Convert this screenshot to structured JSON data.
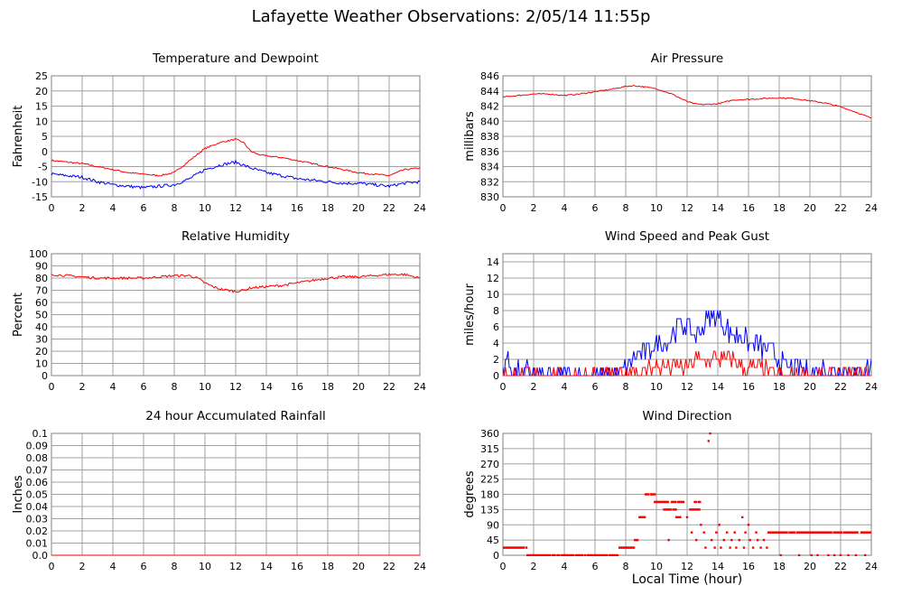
{
  "title": "Lafayette Weather Observations: 2/05/14 11:55p",
  "xlabel_bottom": "Local Time (hour)",
  "colors": {
    "red": "#ff0000",
    "blue": "#0000ff",
    "grid": "#a0a0a0"
  },
  "chart_data": [
    {
      "id": "temp",
      "type": "line",
      "title": "Temperature and Dewpoint",
      "ylabel": "Fahrenheit",
      "xlim": [
        0,
        24
      ],
      "ylim": [
        -15,
        25
      ],
      "xticks": [
        0,
        2,
        4,
        6,
        8,
        10,
        12,
        14,
        16,
        18,
        20,
        22,
        24
      ],
      "yticks": [
        -15,
        -10,
        -5,
        0,
        5,
        10,
        15,
        20,
        25
      ],
      "ytick_labels": [
        "-15",
        "-10",
        "-5",
        "0",
        "5",
        "10",
        "15",
        "20",
        "25"
      ],
      "grid": true,
      "series": [
        {
          "color": "#ff0000",
          "x": [
            0,
            1,
            2,
            3,
            4,
            5,
            6,
            7,
            8,
            8.5,
            9,
            9.5,
            10,
            10.5,
            11,
            11.5,
            12,
            12.5,
            13,
            13.5,
            14,
            15,
            16,
            17,
            18,
            19,
            20,
            21,
            22,
            22.5,
            23,
            24
          ],
          "y": [
            -3,
            -3.5,
            -4,
            -5,
            -6,
            -7,
            -7.5,
            -8,
            -7,
            -5,
            -3,
            -1,
            1,
            2,
            3,
            3.5,
            4,
            3,
            0,
            -1,
            -1.5,
            -2,
            -3,
            -4,
            -5,
            -6,
            -7,
            -7.5,
            -8,
            -7,
            -6,
            -5.5
          ],
          "noise": 0.25
        },
        {
          "color": "#0000ff",
          "x": [
            0,
            1,
            2,
            3,
            4,
            5,
            6,
            7,
            8,
            9,
            10,
            11,
            12,
            13,
            14,
            15,
            16,
            17,
            18,
            19,
            20,
            21,
            22,
            23,
            24
          ],
          "y": [
            -7.5,
            -8,
            -8.5,
            -10,
            -11,
            -11.5,
            -12,
            -11.5,
            -11,
            -9,
            -6,
            -4.5,
            -3.5,
            -5.5,
            -7,
            -8,
            -9,
            -9.5,
            -10,
            -10.5,
            -10.5,
            -11,
            -11.5,
            -10.5,
            -10
          ],
          "noise": 0.5
        }
      ]
    },
    {
      "id": "pressure",
      "type": "line",
      "title": "Air Pressure",
      "ylabel": "millibars",
      "xlim": [
        0,
        24
      ],
      "ylim": [
        830,
        846
      ],
      "xticks": [
        0,
        2,
        4,
        6,
        8,
        10,
        12,
        14,
        16,
        18,
        20,
        22,
        24
      ],
      "yticks": [
        830,
        832,
        834,
        836,
        838,
        840,
        842,
        844,
        846
      ],
      "ytick_labels": [
        "830",
        "832",
        "834",
        "836",
        "838",
        "840",
        "842",
        "844",
        "846"
      ],
      "grid": true,
      "series": [
        {
          "color": "#ff0000",
          "x": [
            0,
            1,
            2,
            3,
            4,
            5,
            6,
            7,
            8,
            8.5,
            9,
            10,
            11,
            12,
            12.5,
            13,
            14,
            15,
            16,
            17,
            18,
            19,
            20,
            21,
            22,
            23,
            24
          ],
          "y": [
            843.2,
            843.4,
            843.6,
            843.6,
            843.4,
            843.6,
            843.9,
            844.2,
            844.6,
            844.7,
            844.6,
            844.3,
            843.6,
            842.6,
            842.3,
            842.2,
            842.3,
            842.8,
            842.9,
            843,
            843.1,
            843,
            842.7,
            842.4,
            841.9,
            841.2,
            840.4
          ],
          "noise": 0.08
        }
      ]
    },
    {
      "id": "humidity",
      "type": "line",
      "title": "Relative Humidity",
      "ylabel": "Percent",
      "xlim": [
        0,
        24
      ],
      "ylim": [
        0,
        100
      ],
      "xticks": [
        0,
        2,
        4,
        6,
        8,
        10,
        12,
        14,
        16,
        18,
        20,
        22,
        24
      ],
      "yticks": [
        0,
        10,
        20,
        30,
        40,
        50,
        60,
        70,
        80,
        90,
        100
      ],
      "ytick_labels": [
        "0",
        "10",
        "20",
        "30",
        "40",
        "50",
        "60",
        "70",
        "80",
        "90",
        "100"
      ],
      "grid": true,
      "series": [
        {
          "color": "#ff0000",
          "x": [
            0,
            1,
            2,
            3,
            4,
            5,
            6,
            7,
            8,
            9,
            9.5,
            10,
            10.5,
            11,
            11.5,
            12,
            12.5,
            13,
            14,
            15,
            16,
            17,
            18,
            19,
            20,
            21,
            22,
            23,
            24
          ],
          "y": [
            83,
            82,
            81,
            80,
            80,
            80,
            80,
            81,
            82,
            82,
            80,
            76,
            73,
            71,
            70,
            69,
            70,
            72,
            73,
            74,
            76,
            78,
            80,
            81,
            81,
            82,
            83,
            83,
            80
          ],
          "noise": 1.0
        }
      ]
    },
    {
      "id": "wind",
      "type": "line",
      "title": "Wind Speed and Peak Gust",
      "ylabel": "miles/hour",
      "xlim": [
        0,
        24
      ],
      "ylim": [
        0,
        15
      ],
      "xticks": [
        0,
        2,
        4,
        6,
        8,
        10,
        12,
        14,
        16,
        18,
        20,
        22,
        24
      ],
      "yticks": [
        0,
        2,
        4,
        6,
        8,
        10,
        12,
        14
      ],
      "ytick_labels": [
        "0",
        "2",
        "4",
        "6",
        "8",
        "10",
        "12",
        "14"
      ],
      "grid": true,
      "series": [
        {
          "color": "#0000ff",
          "x": [
            0,
            0.2,
            0.5,
            0.8,
            1.0,
            1.3,
            1.6,
            1.8,
            2,
            4,
            6,
            7,
            7.5,
            8,
            8.5,
            9,
            9.5,
            10,
            10.5,
            11,
            11.5,
            12,
            12.5,
            13,
            13.5,
            14,
            14.5,
            15,
            15.5,
            16,
            16.5,
            17,
            17.5,
            18,
            18.5,
            19,
            19.5,
            20,
            20.5,
            21,
            21.5,
            22,
            22.5,
            23,
            23.5,
            24
          ],
          "y": [
            1,
            2,
            1,
            0,
            1,
            0,
            1,
            0,
            0,
            0,
            0,
            0,
            0,
            1,
            2,
            3,
            3,
            4,
            4,
            5,
            6,
            6,
            5,
            6,
            7,
            7,
            6,
            5,
            5,
            4,
            4,
            3,
            3,
            2,
            1,
            1,
            1,
            1,
            0,
            1,
            0,
            1,
            1,
            0,
            1,
            1
          ],
          "noise": 1.3
        },
        {
          "color": "#ff0000",
          "x": [
            0,
            7.5,
            8,
            8.5,
            9,
            9.5,
            10,
            10.5,
            11,
            11.5,
            12,
            12.5,
            13,
            13.5,
            14,
            14.5,
            15,
            15.5,
            16,
            16.5,
            17,
            17.5,
            18,
            20,
            24
          ],
          "y": [
            0,
            0,
            0,
            1,
            0,
            1,
            1,
            1,
            1,
            1,
            1,
            2,
            2,
            2,
            2,
            2,
            2,
            1,
            1,
            1,
            1,
            0,
            0,
            0,
            0
          ],
          "noise": 0.9
        }
      ]
    },
    {
      "id": "rain",
      "type": "line",
      "title": "24 hour Accumulated Rainfall",
      "ylabel": "Inches",
      "xlim": [
        0,
        24
      ],
      "ylim": [
        0,
        0.1
      ],
      "xticks": [
        0,
        2,
        4,
        6,
        8,
        10,
        12,
        14,
        16,
        18,
        20,
        22,
        24
      ],
      "yticks": [
        0,
        0.01,
        0.02,
        0.03,
        0.04,
        0.05,
        0.06,
        0.07,
        0.08,
        0.09,
        0.1
      ],
      "ytick_labels": [
        "0.0",
        "0.01",
        "0.02",
        "0.03",
        "0.04",
        "0.05",
        "0.06",
        "0.07",
        "0.08",
        "0.09",
        "0.1"
      ],
      "grid": true,
      "series": [
        {
          "color": "#ff0000",
          "x": [
            0,
            24
          ],
          "y": [
            0,
            0
          ],
          "noise": 0
        }
      ]
    },
    {
      "id": "direction",
      "type": "scatter",
      "title": "Wind Direction",
      "ylabel": "degrees",
      "xlabel": "Local Time (hour)",
      "xlim": [
        0,
        24
      ],
      "ylim": [
        0,
        360
      ],
      "xticks": [
        0,
        2,
        4,
        6,
        8,
        10,
        12,
        14,
        16,
        18,
        20,
        22,
        24
      ],
      "yticks": [
        0,
        45,
        90,
        135,
        180,
        225,
        270,
        315,
        360
      ],
      "ytick_labels": [
        "0",
        "45",
        "90",
        "135",
        "180",
        "225",
        "270",
        "315",
        "360"
      ],
      "grid": true,
      "series": [
        {
          "color": "#ff0000",
          "segments": [
            {
              "x0": 0.0,
              "x1": 1.6,
              "y": 22.5
            },
            {
              "x0": 1.6,
              "x1": 7.5,
              "y": 0
            },
            {
              "x0": 7.6,
              "x1": 8.6,
              "y": 22.5
            },
            {
              "x0": 8.6,
              "x1": 8.9,
              "y": 45
            },
            {
              "x0": 8.9,
              "x1": 9.3,
              "y": 112.5
            },
            {
              "x0": 9.3,
              "x1": 9.9,
              "y": 180
            },
            {
              "x0": 9.9,
              "x1": 10.8,
              "y": 157.5
            },
            {
              "x0": 10.5,
              "x1": 11.3,
              "y": 135
            },
            {
              "x0": 11.0,
              "x1": 11.8,
              "y": 157.5
            },
            {
              "x0": 11.3,
              "x1": 11.7,
              "y": 112.5
            },
            {
              "x0": 12.2,
              "x1": 12.8,
              "y": 135
            },
            {
              "x0": 12.5,
              "x1": 12.9,
              "y": 157.5
            },
            {
              "x0": 17.4,
              "x1": 24.0,
              "y": 67.5
            }
          ],
          "points": [
            [
              10.8,
              45
            ],
            [
              12.0,
              112.5
            ],
            [
              12.3,
              67.5
            ],
            [
              12.6,
              45
            ],
            [
              12.9,
              90
            ],
            [
              13.1,
              67.5
            ],
            [
              13.2,
              22.5
            ],
            [
              13.4,
              337.5
            ],
            [
              13.5,
              360
            ],
            [
              13.6,
              45
            ],
            [
              13.8,
              22.5
            ],
            [
              13.9,
              67.5
            ],
            [
              14.1,
              90
            ],
            [
              14.2,
              22.5
            ],
            [
              14.4,
              45
            ],
            [
              14.6,
              67.5
            ],
            [
              14.8,
              22.5
            ],
            [
              14.9,
              45
            ],
            [
              15.1,
              67.5
            ],
            [
              15.2,
              22.5
            ],
            [
              15.4,
              45
            ],
            [
              15.6,
              112.5
            ],
            [
              15.7,
              22.5
            ],
            [
              15.8,
              67.5
            ],
            [
              16.0,
              90
            ],
            [
              16.1,
              45
            ],
            [
              16.3,
              22.5
            ],
            [
              16.5,
              67.5
            ],
            [
              16.6,
              45
            ],
            [
              16.8,
              22.5
            ],
            [
              17.0,
              45
            ],
            [
              17.2,
              22.5
            ],
            [
              17.3,
              67.5
            ],
            [
              18.1,
              0
            ],
            [
              18.8,
              67.5
            ],
            [
              19.3,
              0
            ],
            [
              20.1,
              0
            ],
            [
              20.5,
              0
            ],
            [
              21.2,
              0
            ],
            [
              21.6,
              0
            ],
            [
              22.0,
              0
            ],
            [
              22.5,
              0
            ],
            [
              23.0,
              0
            ],
            [
              23.6,
              0
            ],
            [
              21.0,
              67.5
            ],
            [
              22.4,
              67.5
            ]
          ]
        }
      ]
    }
  ]
}
